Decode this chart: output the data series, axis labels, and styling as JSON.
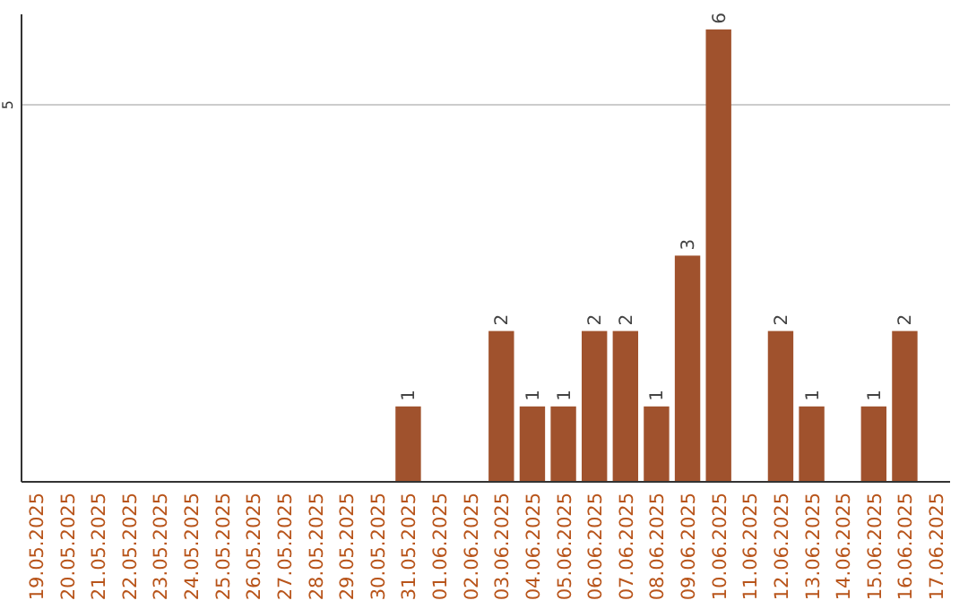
{
  "chart_data": {
    "type": "bar",
    "categories": [
      "19.05.2025",
      "20.05.2025",
      "21.05.2025",
      "22.05.2025",
      "23.05.2025",
      "24.05.2025",
      "25.05.2025",
      "26.05.2025",
      "27.05.2025",
      "28.05.2025",
      "29.05.2025",
      "30.05.2025",
      "31.05.2025",
      "01.06.2025",
      "02.06.2025",
      "03.06.2025",
      "04.06.2025",
      "05.06.2025",
      "06.06.2025",
      "07.06.2025",
      "08.06.2025",
      "09.06.2025",
      "10.06.2025",
      "11.06.2025",
      "12.06.2025",
      "13.06.2025",
      "14.06.2025",
      "15.06.2025",
      "16.06.2025",
      "17.06.2025"
    ],
    "values": [
      null,
      null,
      null,
      null,
      null,
      null,
      null,
      null,
      null,
      null,
      null,
      null,
      1,
      null,
      null,
      2,
      1,
      1,
      2,
      2,
      1,
      3,
      6,
      null,
      2,
      1,
      null,
      1,
      2,
      null
    ],
    "value_labels": [
      null,
      null,
      null,
      null,
      null,
      null,
      null,
      null,
      null,
      null,
      null,
      null,
      "1",
      null,
      null,
      "2",
      "1",
      "1",
      "2",
      "2",
      "1",
      "3",
      "6",
      null,
      "2",
      "1",
      null,
      "1",
      "2",
      null
    ],
    "color": "#a0522d",
    "ylim": [
      0,
      6.2
    ],
    "yticks": [
      5
    ],
    "grid": "y"
  }
}
